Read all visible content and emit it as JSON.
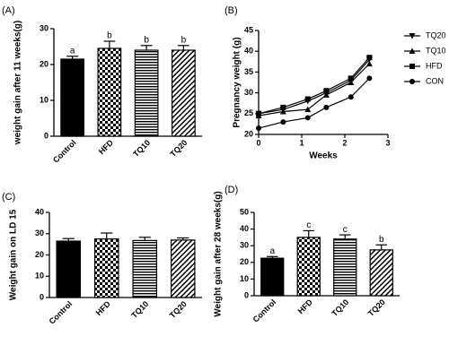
{
  "chart_data": [
    {
      "type": "bar",
      "panel_label": "(A)",
      "ylabel": "weight gain after 11 weeks(g)",
      "categories": [
        "Control",
        "HFD",
        "TQ10",
        "TQ20"
      ],
      "values": [
        21.5,
        24.5,
        24,
        24
      ],
      "errors": [
        0.8,
        2,
        1.3,
        1.3
      ],
      "annotations": [
        "a",
        "b",
        "b",
        "b"
      ],
      "patterns": [
        "solid",
        "checker",
        "hlines",
        "diagonal"
      ],
      "color": "#000000",
      "ylim": [
        0,
        30
      ],
      "yticks": [
        0,
        10,
        20,
        30
      ]
    },
    {
      "type": "line",
      "panel_label": "(B)",
      "ylabel": "Pregnancy weight (g)",
      "xlabel": "Weeks",
      "x": [
        0,
        0.57,
        1.14,
        1.57,
        2.14,
        2.57
      ],
      "series": [
        {
          "name": "TQ20",
          "color": "#000000",
          "marker": "triangle-down",
          "values": [
            25,
            26,
            28,
            30,
            33,
            38
          ]
        },
        {
          "name": "TQ10",
          "color": "#000000",
          "marker": "triangle-up",
          "values": [
            24.5,
            25.5,
            26,
            29.5,
            32.5,
            37
          ]
        },
        {
          "name": "HFD",
          "color": "#000000",
          "marker": "square",
          "values": [
            25,
            26.5,
            28.5,
            30.5,
            33.5,
            38.5
          ]
        },
        {
          "name": "CON",
          "color": "#000000",
          "marker": "circle",
          "values": [
            21.5,
            23,
            24,
            26.5,
            29,
            33.5
          ]
        }
      ],
      "xlim": [
        0,
        3
      ],
      "xticks": [
        0,
        1,
        2,
        3
      ],
      "ylim": [
        20,
        45
      ],
      "yticks": [
        20,
        25,
        30,
        35,
        40,
        45
      ],
      "legend": "right"
    },
    {
      "type": "bar",
      "panel_label": "(C)",
      "ylabel": "Weight gain on LD 15",
      "categories": [
        "Control",
        "HFD",
        "TQ10",
        "TQ20"
      ],
      "values": [
        26.5,
        27.5,
        26.8,
        27
      ],
      "errors": [
        1.2,
        2.8,
        1.5,
        1
      ],
      "patterns": [
        "solid",
        "checker",
        "hlines",
        "diagonal"
      ],
      "color": "#000000",
      "ylim": [
        0,
        40
      ],
      "yticks": [
        0,
        10,
        20,
        30,
        40
      ]
    },
    {
      "type": "bar",
      "panel_label": "(D)",
      "ylabel": "Weight gain after 28 weeks(g)",
      "categories": [
        "Control",
        "HFD",
        "TQ10",
        "TQ20"
      ],
      "values": [
        22.5,
        35,
        34,
        27.5
      ],
      "errors": [
        1,
        4,
        2.5,
        3
      ],
      "annotations": [
        "a",
        "c",
        "c",
        "b"
      ],
      "patterns": [
        "solid",
        "checker",
        "hlines",
        "diagonal"
      ],
      "color": "#000000",
      "ylim": [
        0,
        50
      ],
      "yticks": [
        0,
        10,
        20,
        30,
        40,
        50
      ]
    }
  ]
}
